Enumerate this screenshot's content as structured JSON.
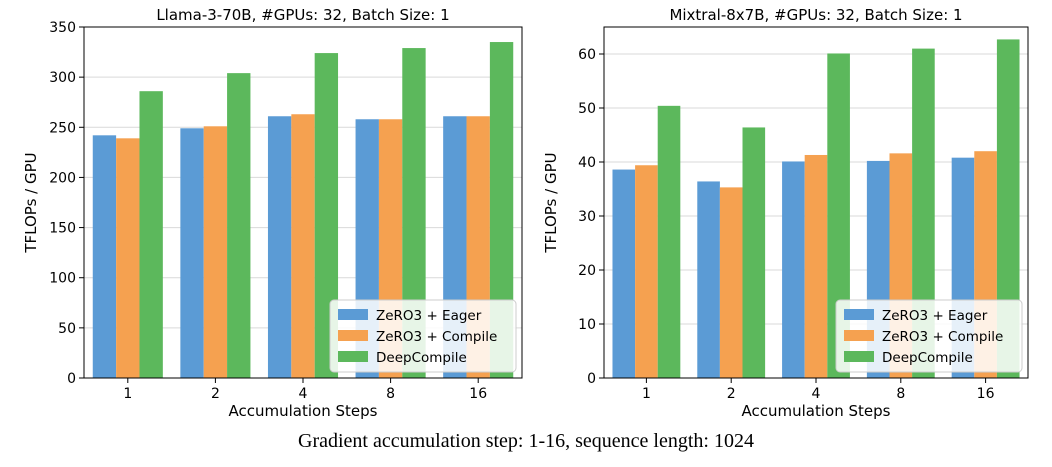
{
  "caption": "Gradient accumulation step: 1-16, sequence length: 1024",
  "chart_data": [
    {
      "type": "bar",
      "title": "Llama-3-70B, #GPUs: 32, Batch Size: 1",
      "xlabel": "Accumulation Steps",
      "ylabel": "TFLOPs / GPU",
      "categories": [
        "1",
        "2",
        "4",
        "8",
        "16"
      ],
      "ylim": [
        0,
        350
      ],
      "yticks": [
        0,
        50,
        100,
        150,
        200,
        250,
        300,
        350
      ],
      "grid": true,
      "legend_position": "lower-right",
      "series": [
        {
          "name": "ZeRO3 + Eager",
          "color": "#5b9bd5",
          "values": [
            242,
            249,
            261,
            258,
            261
          ]
        },
        {
          "name": "ZeRO3 + Compile",
          "color": "#f5a150",
          "values": [
            239,
            251,
            263,
            258,
            261
          ]
        },
        {
          "name": "DeepCompile",
          "color": "#5cb85c",
          "values": [
            286,
            304,
            324,
            329,
            335
          ]
        }
      ]
    },
    {
      "type": "bar",
      "title": "Mixtral-8x7B, #GPUs: 32, Batch Size: 1",
      "xlabel": "Accumulation Steps",
      "ylabel": "TFLOPs / GPU",
      "categories": [
        "1",
        "2",
        "4",
        "8",
        "16"
      ],
      "ylim": [
        0,
        65
      ],
      "yticks": [
        0,
        10,
        20,
        30,
        40,
        50,
        60
      ],
      "grid": true,
      "legend_position": "lower-right",
      "series": [
        {
          "name": "ZeRO3 + Eager",
          "color": "#5b9bd5",
          "values": [
            38.6,
            36.4,
            40.1,
            40.2,
            40.8
          ]
        },
        {
          "name": "ZeRO3 + Compile",
          "color": "#f5a150",
          "values": [
            39.4,
            35.3,
            41.3,
            41.6,
            42.0
          ]
        },
        {
          "name": "DeepCompile",
          "color": "#5cb85c",
          "values": [
            50.4,
            46.4,
            60.1,
            61.0,
            62.7
          ]
        }
      ]
    }
  ]
}
